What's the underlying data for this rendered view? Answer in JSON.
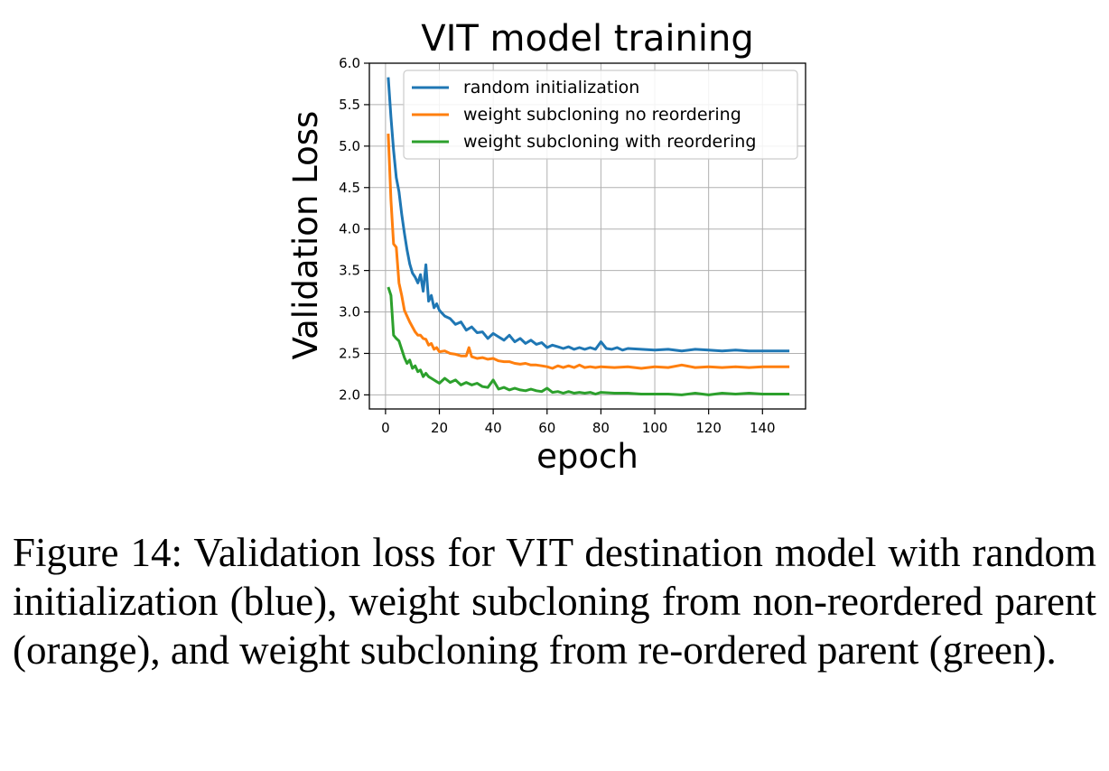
{
  "figure_caption": {
    "label": "Figure 14:",
    "text": "Validation loss for VIT destination model with random initialization (blue), weight subcloning from non-reordered parent (orange), and weight subcloning from re-ordered parent (green)."
  },
  "chart_data": {
    "type": "line",
    "title": "VIT model training",
    "xlabel": "epoch",
    "ylabel": "Validation Loss",
    "xlim": [
      -6,
      156
    ],
    "ylim": [
      1.83,
      6.0
    ],
    "xticks": [
      0,
      20,
      40,
      60,
      80,
      100,
      120,
      140
    ],
    "yticks": [
      2.0,
      2.5,
      3.0,
      3.5,
      4.0,
      4.5,
      5.0,
      5.5,
      6.0
    ],
    "grid": true,
    "legend_position": "upper right",
    "series": [
      {
        "name": "random initialization",
        "color": "#1f77b4",
        "x": [
          1,
          2,
          3,
          4,
          5,
          6,
          7,
          8,
          9,
          10,
          11,
          12,
          13,
          14,
          15,
          16,
          17,
          18,
          19,
          20,
          22,
          24,
          26,
          28,
          30,
          32,
          34,
          36,
          38,
          40,
          42,
          44,
          46,
          48,
          50,
          52,
          54,
          56,
          58,
          60,
          62,
          64,
          66,
          68,
          70,
          72,
          74,
          76,
          78,
          80,
          82,
          84,
          86,
          88,
          90,
          95,
          100,
          105,
          110,
          115,
          120,
          125,
          130,
          135,
          140,
          145,
          150
        ],
        "y": [
          5.83,
          5.35,
          4.95,
          4.62,
          4.45,
          4.18,
          3.95,
          3.75,
          3.58,
          3.47,
          3.42,
          3.35,
          3.45,
          3.25,
          3.57,
          3.13,
          3.2,
          3.05,
          3.1,
          3.02,
          2.95,
          2.92,
          2.85,
          2.88,
          2.78,
          2.82,
          2.75,
          2.76,
          2.68,
          2.74,
          2.7,
          2.66,
          2.72,
          2.64,
          2.68,
          2.62,
          2.66,
          2.61,
          2.63,
          2.57,
          2.6,
          2.58,
          2.56,
          2.58,
          2.55,
          2.57,
          2.55,
          2.57,
          2.55,
          2.64,
          2.56,
          2.55,
          2.57,
          2.54,
          2.56,
          2.55,
          2.54,
          2.55,
          2.53,
          2.55,
          2.54,
          2.53,
          2.54,
          2.53,
          2.53,
          2.53,
          2.53
        ]
      },
      {
        "name": "weight subcloning no reordering",
        "color": "#ff7f0e",
        "x": [
          1,
          2,
          3,
          4,
          5,
          6,
          7,
          8,
          9,
          10,
          11,
          12,
          13,
          14,
          15,
          16,
          17,
          18,
          19,
          20,
          22,
          24,
          26,
          28,
          30,
          31,
          32,
          34,
          36,
          38,
          40,
          42,
          44,
          46,
          48,
          50,
          52,
          54,
          56,
          58,
          60,
          62,
          64,
          66,
          68,
          70,
          72,
          74,
          76,
          78,
          80,
          85,
          90,
          95,
          100,
          105,
          110,
          115,
          120,
          125,
          130,
          135,
          140,
          145,
          150
        ],
        "y": [
          5.15,
          4.35,
          3.82,
          3.78,
          3.35,
          3.2,
          3.02,
          2.95,
          2.88,
          2.82,
          2.76,
          2.72,
          2.72,
          2.68,
          2.67,
          2.6,
          2.62,
          2.55,
          2.57,
          2.52,
          2.53,
          2.5,
          2.49,
          2.47,
          2.47,
          2.57,
          2.46,
          2.44,
          2.45,
          2.43,
          2.44,
          2.41,
          2.4,
          2.4,
          2.38,
          2.37,
          2.38,
          2.36,
          2.36,
          2.35,
          2.34,
          2.32,
          2.35,
          2.33,
          2.35,
          2.33,
          2.36,
          2.33,
          2.34,
          2.33,
          2.34,
          2.33,
          2.34,
          2.32,
          2.34,
          2.33,
          2.36,
          2.33,
          2.34,
          2.33,
          2.34,
          2.33,
          2.34,
          2.34,
          2.34
        ]
      },
      {
        "name": "weight subcloning with reordering",
        "color": "#2ca02c",
        "x": [
          1,
          2,
          3,
          4,
          5,
          6,
          7,
          8,
          9,
          10,
          11,
          12,
          13,
          14,
          15,
          16,
          17,
          18,
          19,
          20,
          22,
          24,
          26,
          28,
          30,
          32,
          34,
          36,
          38,
          40,
          42,
          44,
          46,
          48,
          50,
          52,
          54,
          56,
          58,
          60,
          62,
          64,
          66,
          68,
          70,
          72,
          74,
          76,
          78,
          80,
          85,
          90,
          95,
          100,
          105,
          110,
          115,
          120,
          125,
          130,
          135,
          140,
          145,
          150
        ],
        "y": [
          3.3,
          3.2,
          2.72,
          2.68,
          2.65,
          2.55,
          2.45,
          2.38,
          2.42,
          2.32,
          2.35,
          2.28,
          2.3,
          2.22,
          2.26,
          2.22,
          2.2,
          2.18,
          2.16,
          2.14,
          2.2,
          2.15,
          2.18,
          2.12,
          2.15,
          2.12,
          2.14,
          2.1,
          2.09,
          2.18,
          2.07,
          2.09,
          2.06,
          2.08,
          2.06,
          2.05,
          2.07,
          2.05,
          2.04,
          2.08,
          2.03,
          2.04,
          2.02,
          2.04,
          2.02,
          2.03,
          2.02,
          2.03,
          2.01,
          2.03,
          2.02,
          2.02,
          2.01,
          2.01,
          2.01,
          2.0,
          2.02,
          2.0,
          2.02,
          2.01,
          2.02,
          2.01,
          2.01,
          2.01
        ]
      }
    ]
  }
}
